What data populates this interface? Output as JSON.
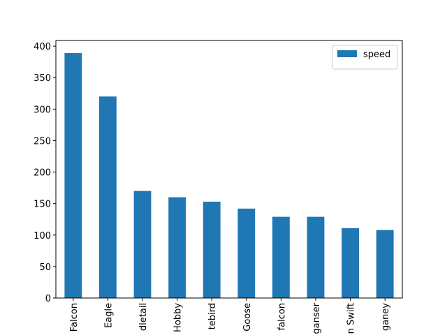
{
  "chart_data": {
    "type": "bar",
    "categories": [
      "Falcon",
      "Eagle",
      "dletail",
      "Hobby",
      "tebird",
      "Goose",
      "falcon",
      "ganser",
      "n Swift",
      "ganey"
    ],
    "series": [
      {
        "name": "speed",
        "color": "#1f77b4",
        "values": [
          389,
          320,
          170,
          160,
          153,
          142,
          129,
          129,
          111,
          108
        ]
      }
    ],
    "ylim": [
      0,
      409
    ],
    "yticks": [
      0,
      50,
      100,
      150,
      200,
      250,
      300,
      350,
      400
    ],
    "legend": "upper right"
  }
}
